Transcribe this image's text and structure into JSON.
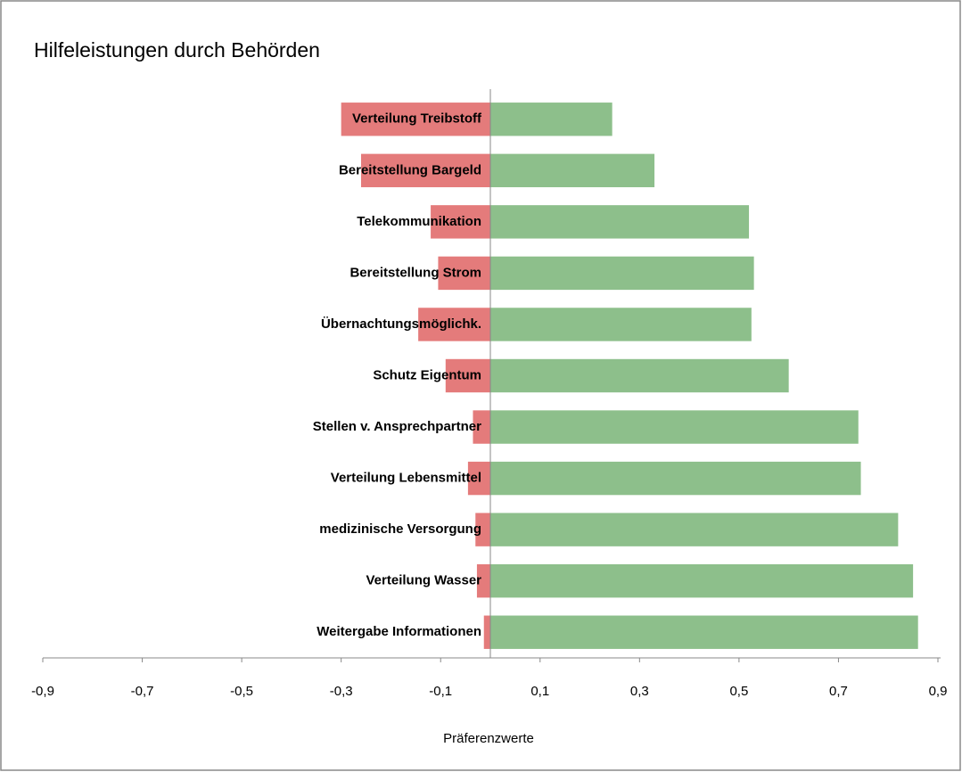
{
  "chart_data": {
    "type": "bar",
    "orientation": "horizontal",
    "stacked": true,
    "title": "Hilfeleistungen durch Behörden",
    "x_label": "Präferenzwerte",
    "categories": [
      "Verteilung Treibstoff",
      "Bereitstellung Bargeld",
      "Telekommunikation",
      "Bereitstellung Strom",
      "Übernachtungsmöglichk.",
      "Schutz Eigentum",
      "Stellen v. Ansprechpartner",
      "Verteilung Lebensmittel",
      "medizinische Versorgung",
      "Verteilung Wasser",
      "Weitergabe Informationen"
    ],
    "series": [
      {
        "color": "#e47b7b",
        "values": [
          -0.3,
          -0.26,
          -0.12,
          -0.105,
          -0.145,
          -0.09,
          -0.035,
          -0.045,
          -0.03,
          -0.027,
          -0.013
        ]
      },
      {
        "color": "#8dbf8b",
        "values": [
          0.245,
          0.33,
          0.52,
          0.53,
          0.525,
          0.6,
          0.74,
          0.745,
          0.82,
          0.85,
          0.86
        ]
      }
    ],
    "xlim": [
      -0.9,
      0.9
    ],
    "xticks": [
      {
        "value": -0.9,
        "label": "-0,9"
      },
      {
        "value": -0.7,
        "label": "-0,7"
      },
      {
        "value": -0.5,
        "label": "-0,5"
      },
      {
        "value": -0.3,
        "label": "-0,3"
      },
      {
        "value": -0.1,
        "label": "-0,1"
      },
      {
        "value": 0.1,
        "label": "0,1"
      },
      {
        "value": 0.3,
        "label": "0,3"
      },
      {
        "value": 0.5,
        "label": "0,5"
      },
      {
        "value": 0.7,
        "label": "0,7"
      },
      {
        "value": 0.9,
        "label": "0,9"
      }
    ],
    "grid": false
  }
}
